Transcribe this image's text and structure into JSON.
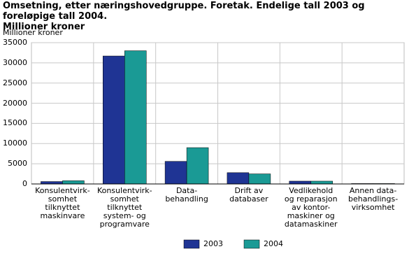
{
  "chart_data": {
    "type": "bar",
    "title": "Omsetning, etter næringshovedgruppe. Foretak. Endelige tall 2003 og foreløpige tall 2004.\nMillioner kroner",
    "y_label": "Millioner kroner",
    "categories": [
      "Konsulentvirk-\nsomhet\ntilknyttet\nmaskinvare",
      "Konsulentvirk-\nsomhet tilknyttet\nsystem- og\nprogramvare",
      "Data-\nbehandling",
      "Drift av\ndatabaser",
      "Vedlikehold\nog reparasjon\nav kontor-\nmaskiner og\ndatamaskiner",
      "Annen data-\nbehandlings-\nvirksomhet"
    ],
    "series": [
      {
        "name": "2003",
        "color": "#1f3494",
        "values": [
          600,
          31700,
          5600,
          2800,
          700,
          100
        ]
      },
      {
        "name": "2004",
        "color": "#1a9a95",
        "values": [
          800,
          33000,
          9000,
          2500,
          700,
          100
        ]
      }
    ],
    "ylim": [
      0,
      35000
    ],
    "yticks": [
      0,
      5000,
      10000,
      15000,
      20000,
      25000,
      30000,
      35000
    ],
    "grid": true
  }
}
